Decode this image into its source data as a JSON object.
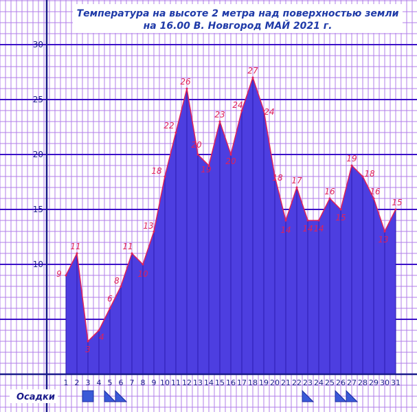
{
  "chart_data": {
    "type": "area",
    "title_line1": "Температура  на  высоте  2  метра  над  поверхностью  земли",
    "title_line2": "на  16.00  В. Новгород  МАЙ  2021  г.",
    "x": [
      1,
      2,
      3,
      4,
      5,
      6,
      7,
      8,
      9,
      10,
      11,
      12,
      13,
      14,
      15,
      16,
      17,
      18,
      19,
      20,
      21,
      22,
      23,
      24,
      25,
      26,
      27,
      28,
      29,
      30,
      31
    ],
    "values": [
      9,
      11,
      3,
      4,
      6,
      8,
      11,
      10,
      13,
      18,
      22,
      26,
      20,
      19,
      23,
      20,
      24,
      27,
      24,
      18,
      14,
      17,
      14,
      14,
      16,
      15,
      19,
      18,
      16,
      13,
      15
    ],
    "y_ticks": [
      10,
      15,
      20,
      25,
      30
    ],
    "ylim": [
      0,
      31
    ],
    "xlim": [
      1,
      31
    ],
    "grid": true,
    "colors": {
      "fill": "#4d3ee0",
      "line": "#e0205a",
      "grid_minor": "#b07ee8",
      "grid_major": "#3a10c8",
      "axis": "#1a1a8a"
    }
  },
  "precipitation": {
    "label": "Осадки",
    "icons": [
      {
        "day": 3,
        "icon": "square-icon"
      },
      {
        "day": 5,
        "icon": "triangle-icon"
      },
      {
        "day": 6,
        "icon": "triangle-icon"
      },
      {
        "day": 23,
        "icon": "triangle-icon"
      },
      {
        "day": 26,
        "icon": "triangle-icon"
      },
      {
        "day": 27,
        "icon": "triangle-icon"
      }
    ]
  }
}
